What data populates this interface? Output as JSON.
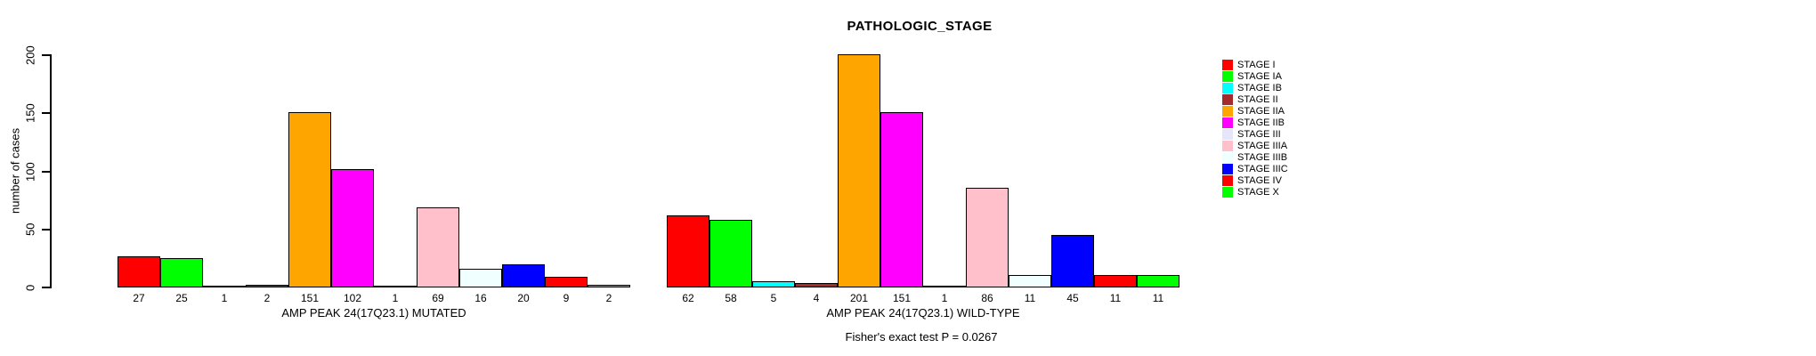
{
  "chart_data": {
    "type": "bar",
    "title": "PATHOLOGIC_STAGE",
    "ylabel": "number of cases",
    "xlabel": "",
    "annotation": "Fisher's exact test P = 0.0267",
    "ylim": [
      0,
      200
    ],
    "yticks": [
      0,
      50,
      100,
      150,
      200
    ],
    "grid": false,
    "legend_position": "right",
    "bar_border_color": "#000000",
    "stages": [
      {
        "label": "STAGE I",
        "color": "#FF0000"
      },
      {
        "label": "STAGE IA",
        "color": "#00FF00"
      },
      {
        "label": "STAGE IB",
        "color": "#00FFFF"
      },
      {
        "label": "STAGE II",
        "color": "#A52A2A"
      },
      {
        "label": "STAGE IIA",
        "color": "#FFA500"
      },
      {
        "label": "STAGE IIB",
        "color": "#FF00FF"
      },
      {
        "label": "STAGE III",
        "color": "#E6E6FA"
      },
      {
        "label": "STAGE IIIA",
        "color": "#FFC0CB"
      },
      {
        "label": "STAGE IIIB",
        "color": "#F0FFFF"
      },
      {
        "label": "STAGE IIIC",
        "color": "#0000FF"
      },
      {
        "label": "STAGE IV",
        "color": "#FF0000"
      },
      {
        "label": "STAGE X",
        "color": "#00FF00"
      }
    ],
    "series": [
      {
        "name": "AMP PEAK 24(17Q23.1) MUTATED",
        "values": [
          27,
          25,
          1,
          2,
          151,
          102,
          1,
          69,
          16,
          20,
          9,
          2
        ]
      },
      {
        "name": "AMP PEAK 24(17Q23.1) WILD-TYPE",
        "values": [
          62,
          58,
          5,
          4,
          201,
          151,
          1,
          86,
          11,
          45,
          11,
          11
        ]
      }
    ]
  }
}
